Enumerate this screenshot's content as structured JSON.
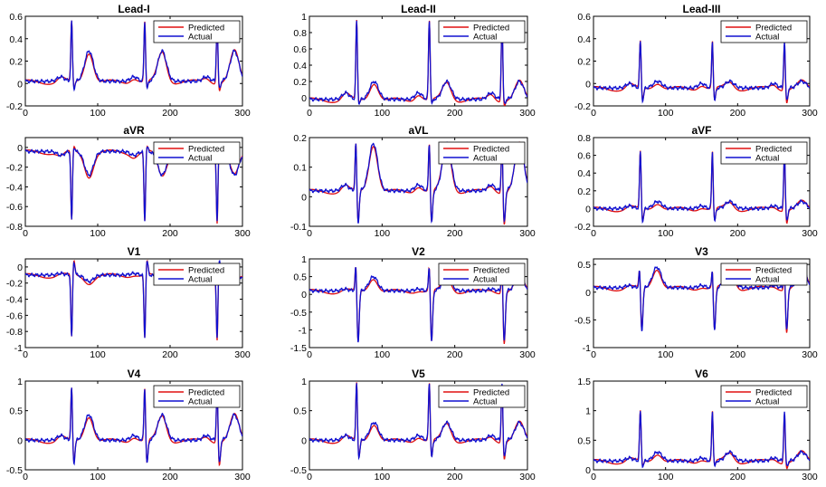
{
  "chart_data": [
    {
      "type": "line",
      "title": "Lead-I",
      "x": [
        0,
        300
      ],
      "xticks": [
        0,
        100,
        200,
        300
      ],
      "xtick_labels": [
        "0",
        "100",
        "200",
        "300"
      ],
      "ylim": [
        -0.2,
        0.6
      ],
      "yticks": [
        -0.2,
        0,
        0.2,
        0.4,
        0.6
      ],
      "ytick_labels": [
        "-0.2",
        "0",
        "0.2",
        "0.4",
        "0.6"
      ],
      "beats": [
        64,
        165,
        265
      ],
      "baseline": 0.02,
      "peak": 0.56,
      "nadir": -0.05,
      "t_wave": 0.29,
      "p_wave": 0.06,
      "series": [
        {
          "name": "Predicted",
          "color": "#e01010"
        },
        {
          "name": "Actual",
          "color": "#1010d0"
        }
      ],
      "legend": "top-right"
    },
    {
      "type": "line",
      "title": "Lead-II",
      "x": [
        0,
        300
      ],
      "xticks": [
        0,
        100,
        200,
        300
      ],
      "xtick_labels": [
        "0",
        "100",
        "200",
        "300"
      ],
      "ylim": [
        -0.1,
        1.0
      ],
      "yticks": [
        0,
        0.2,
        0.4,
        0.6,
        0.8,
        1
      ],
      "ytick_labels": [
        "0",
        "0.2",
        "0.4",
        "0.6",
        "0.8",
        "1"
      ],
      "beats": [
        65,
        165,
        265
      ],
      "baseline": -0.02,
      "peak": 0.95,
      "nadir": -0.08,
      "t_wave": 0.2,
      "p_wave": 0.06,
      "series": [
        {
          "name": "Predicted",
          "color": "#e01010"
        },
        {
          "name": "Actual",
          "color": "#1010d0"
        }
      ],
      "legend": "top-right"
    },
    {
      "type": "line",
      "title": "Lead-III",
      "x": [
        0,
        300
      ],
      "xticks": [
        0,
        100,
        200,
        300
      ],
      "xtick_labels": [
        "0",
        "100",
        "200",
        "300"
      ],
      "ylim": [
        -0.2,
        0.6
      ],
      "yticks": [
        -0.2,
        0,
        0.2,
        0.4,
        0.6
      ],
      "ytick_labels": [
        "-0.2",
        "0",
        "0.2",
        "0.4",
        "0.6"
      ],
      "beats": [
        65,
        165,
        265
      ],
      "baseline": -0.04,
      "peak": 0.39,
      "nadir": -0.16,
      "t_wave": 0.02,
      "p_wave": 0.0,
      "series": [
        {
          "name": "Predicted",
          "color": "#e01010"
        },
        {
          "name": "Actual",
          "color": "#1010d0"
        }
      ],
      "legend": "top-right"
    },
    {
      "type": "line",
      "title": "aVR",
      "x": [
        0,
        300
      ],
      "xticks": [
        0,
        100,
        200,
        300
      ],
      "xtick_labels": [
        "0",
        "100",
        "200",
        "300"
      ],
      "ylim": [
        -0.8,
        0.1
      ],
      "yticks": [
        -0.8,
        -0.6,
        -0.4,
        -0.2,
        0
      ],
      "ytick_labels": [
        "-0.8",
        "-0.6",
        "-0.4",
        "-0.2",
        "0"
      ],
      "beats": [
        64,
        165,
        265
      ],
      "baseline": -0.04,
      "peak": -0.75,
      "nadir": 0.01,
      "t_wave": -0.28,
      "p_wave": -0.08,
      "series": [
        {
          "name": "Predicted",
          "color": "#e01010"
        },
        {
          "name": "Actual",
          "color": "#1010d0"
        }
      ],
      "legend": "top-right"
    },
    {
      "type": "line",
      "title": "aVL",
      "x": [
        0,
        300
      ],
      "xticks": [
        0,
        100,
        200,
        300
      ],
      "xtick_labels": [
        "0",
        "100",
        "200",
        "300"
      ],
      "ylim": [
        -0.1,
        0.2
      ],
      "yticks": [
        -0.1,
        0,
        0.1,
        0.2
      ],
      "ytick_labels": [
        "-0.1",
        "0",
        "0.1",
        "0.2"
      ],
      "beats": [
        64,
        165,
        265
      ],
      "baseline": 0.02,
      "peak": 0.19,
      "nadir": -0.09,
      "t_wave": 0.18,
      "p_wave": 0.04,
      "series": [
        {
          "name": "Predicted",
          "color": "#e01010"
        },
        {
          "name": "Actual",
          "color": "#1010d0"
        }
      ],
      "legend": "top-right"
    },
    {
      "type": "line",
      "title": "aVF",
      "x": [
        0,
        300
      ],
      "xticks": [
        0,
        100,
        200,
        300
      ],
      "xtick_labels": [
        "0",
        "100",
        "200",
        "300"
      ],
      "ylim": [
        -0.2,
        0.8
      ],
      "yticks": [
        -0.2,
        0,
        0.2,
        0.4,
        0.6,
        0.8
      ],
      "ytick_labels": [
        "-0.2",
        "0",
        "0.2",
        "0.4",
        "0.6",
        "0.8"
      ],
      "beats": [
        65,
        165,
        265
      ],
      "baseline": 0.0,
      "peak": 0.66,
      "nadir": -0.15,
      "t_wave": 0.08,
      "p_wave": 0.03,
      "series": [
        {
          "name": "Predicted",
          "color": "#e01010"
        },
        {
          "name": "Actual",
          "color": "#1010d0"
        }
      ],
      "legend": "top-right"
    },
    {
      "type": "line",
      "title": "V1",
      "x": [
        0,
        300
      ],
      "xticks": [
        0,
        100,
        200,
        300
      ],
      "xtick_labels": [
        "0",
        "100",
        "200",
        "300"
      ],
      "ylim": [
        -1,
        0.1
      ],
      "yticks": [
        -1,
        -0.8,
        -0.6,
        -0.4,
        -0.2,
        0
      ],
      "ytick_labels": [
        "-1",
        "-0.8",
        "-0.6",
        "-0.4",
        "-0.2",
        "0"
      ],
      "beats": [
        64,
        165,
        265
      ],
      "baseline": -0.1,
      "peak": -0.9,
      "nadir": 0.08,
      "t_wave": -0.18,
      "p_wave": -0.08,
      "series": [
        {
          "name": "Predicted",
          "color": "#e01010"
        },
        {
          "name": "Actual",
          "color": "#1010d0"
        }
      ],
      "legend": "top-right"
    },
    {
      "type": "line",
      "title": "V2",
      "x": [
        0,
        300
      ],
      "xticks": [
        0,
        100,
        200,
        300
      ],
      "xtick_labels": [
        "0",
        "100",
        "200",
        "300"
      ],
      "ylim": [
        -1.5,
        1
      ],
      "yticks": [
        -1.5,
        -1,
        -0.5,
        0,
        0.5,
        1
      ],
      "ytick_labels": [
        "-1.5",
        "-1",
        "-0.5",
        "0",
        "0.5",
        "1"
      ],
      "beats": [
        64,
        165,
        265
      ],
      "baseline": 0.1,
      "peak": 0.9,
      "nadir": -1.35,
      "t_wave": 0.5,
      "p_wave": 0.15,
      "series": [
        {
          "name": "Predicted",
          "color": "#e01010"
        },
        {
          "name": "Actual",
          "color": "#1010d0"
        }
      ],
      "legend": "top-right"
    },
    {
      "type": "line",
      "title": "V3",
      "x": [
        0,
        300
      ],
      "xticks": [
        0,
        100,
        200,
        300
      ],
      "xtick_labels": [
        "0",
        "100",
        "200",
        "300"
      ],
      "ylim": [
        -1,
        0.6
      ],
      "yticks": [
        -1,
        -0.5,
        0,
        0.5
      ],
      "ytick_labels": [
        "-1",
        "-0.5",
        "0",
        "0.5"
      ],
      "beats": [
        64,
        165,
        265
      ],
      "baseline": 0.08,
      "peak": 0.45,
      "nadir": -0.7,
      "t_wave": 0.45,
      "p_wave": 0.12,
      "series": [
        {
          "name": "Predicted",
          "color": "#e01010"
        },
        {
          "name": "Actual",
          "color": "#1010d0"
        }
      ],
      "legend": "top-right"
    },
    {
      "type": "line",
      "title": "V4",
      "x": [
        0,
        300
      ],
      "xticks": [
        0,
        100,
        200,
        300
      ],
      "xtick_labels": [
        "0",
        "100",
        "200",
        "300"
      ],
      "ylim": [
        -0.5,
        1
      ],
      "yticks": [
        -0.5,
        0,
        0.5,
        1
      ],
      "ytick_labels": [
        "-0.5",
        "0",
        "0.5",
        "1"
      ],
      "beats": [
        64,
        165,
        265
      ],
      "baseline": 0.0,
      "peak": 0.92,
      "nadir": -0.4,
      "t_wave": 0.43,
      "p_wave": 0.08,
      "series": [
        {
          "name": "Predicted",
          "color": "#e01010"
        },
        {
          "name": "Actual",
          "color": "#1010d0"
        }
      ],
      "legend": "top-right"
    },
    {
      "type": "line",
      "title": "V5",
      "x": [
        0,
        300
      ],
      "xticks": [
        0,
        100,
        200,
        300
      ],
      "xtick_labels": [
        "0",
        "100",
        "200",
        "300"
      ],
      "ylim": [
        -0.5,
        1
      ],
      "yticks": [
        -0.5,
        0,
        0.5,
        1
      ],
      "ytick_labels": [
        "-0.5",
        "0",
        "0.5",
        "1"
      ],
      "beats": [
        65,
        165,
        265
      ],
      "baseline": 0.0,
      "peak": 1.0,
      "nadir": -0.3,
      "t_wave": 0.3,
      "p_wave": 0.08,
      "series": [
        {
          "name": "Predicted",
          "color": "#e01010"
        },
        {
          "name": "Actual",
          "color": "#1010d0"
        }
      ],
      "legend": "top-right"
    },
    {
      "type": "line",
      "title": "V6",
      "x": [
        0,
        300
      ],
      "xticks": [
        0,
        100,
        200,
        300
      ],
      "xtick_labels": [
        "0",
        "100",
        "200",
        "300"
      ],
      "ylim": [
        0,
        1.5
      ],
      "yticks": [
        0,
        0.5,
        1,
        1.5
      ],
      "ytick_labels": [
        "0",
        "0.5",
        "1",
        "1.5"
      ],
      "beats": [
        65,
        165,
        265
      ],
      "baseline": 0.15,
      "peak": 1.0,
      "nadir": 0.05,
      "t_wave": 0.3,
      "p_wave": 0.2,
      "series": [
        {
          "name": "Predicted",
          "color": "#e01010"
        },
        {
          "name": "Actual",
          "color": "#1010d0"
        }
      ],
      "legend": "top-right"
    }
  ]
}
